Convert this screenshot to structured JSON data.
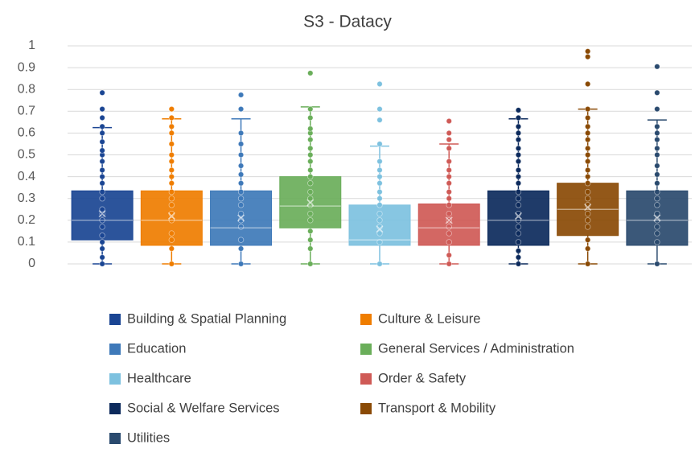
{
  "chart_data": {
    "type": "box",
    "title": "S3 - Datacy",
    "ylim": [
      0,
      1
    ],
    "yticks": [
      0,
      0.1,
      0.2,
      0.3,
      0.4,
      0.5,
      0.6,
      0.7,
      0.8,
      0.9,
      1
    ],
    "grid": true,
    "series": [
      {
        "name": "Building & Spatial Planning",
        "color": "#1a4593",
        "min": 0,
        "q1": 0.11,
        "median": 0.2,
        "q3": 0.335,
        "max": 0.625,
        "mean": 0.23,
        "points": [
          0,
          0.03,
          0.07,
          0.1,
          0.13,
          0.17,
          0.2,
          0.23,
          0.25,
          0.3,
          0.33,
          0.37,
          0.4,
          0.43,
          0.47,
          0.5,
          0.52,
          0.56,
          0.6,
          0.63,
          0.67,
          0.71,
          0.785
        ]
      },
      {
        "name": "Culture & Leisure",
        "color": "#ef7d00",
        "min": 0,
        "q1": 0.085,
        "median": 0.2,
        "q3": 0.335,
        "max": 0.665,
        "mean": 0.22,
        "points": [
          0,
          0.07,
          0.11,
          0.14,
          0.2,
          0.23,
          0.27,
          0.3,
          0.33,
          0.37,
          0.4,
          0.43,
          0.47,
          0.5,
          0.55,
          0.6,
          0.63,
          0.67,
          0.71
        ]
      },
      {
        "name": "Education",
        "color": "#3e79b9",
        "min": 0,
        "q1": 0.085,
        "median": 0.165,
        "q3": 0.335,
        "max": 0.665,
        "mean": 0.21,
        "points": [
          0,
          0.07,
          0.11,
          0.17,
          0.2,
          0.23,
          0.27,
          0.3,
          0.33,
          0.37,
          0.41,
          0.45,
          0.5,
          0.55,
          0.6,
          0.71,
          0.775
        ]
      },
      {
        "name": "General Services / Administration",
        "color": "#6aae5a",
        "min": 0,
        "q1": 0.165,
        "median": 0.265,
        "q3": 0.4,
        "max": 0.72,
        "mean": 0.28,
        "points": [
          0,
          0.07,
          0.11,
          0.15,
          0.2,
          0.23,
          0.27,
          0.3,
          0.33,
          0.37,
          0.4,
          0.43,
          0.47,
          0.5,
          0.53,
          0.57,
          0.6,
          0.62,
          0.67,
          0.71,
          0.875
        ]
      },
      {
        "name": "Healthcare",
        "color": "#7dc1df",
        "min": 0,
        "q1": 0.085,
        "median": 0.11,
        "q3": 0.27,
        "max": 0.54,
        "mean": 0.16,
        "points": [
          0,
          0.1,
          0.14,
          0.17,
          0.2,
          0.23,
          0.27,
          0.3,
          0.33,
          0.37,
          0.4,
          0.43,
          0.47,
          0.55,
          0.66,
          0.71,
          0.825
        ]
      },
      {
        "name": "Order & Safety",
        "color": "#cf5a56",
        "min": 0,
        "q1": 0.085,
        "median": 0.165,
        "q3": 0.275,
        "max": 0.55,
        "mean": 0.2,
        "points": [
          0,
          0.04,
          0.1,
          0.14,
          0.17,
          0.2,
          0.23,
          0.27,
          0.3,
          0.33,
          0.37,
          0.4,
          0.43,
          0.47,
          0.53,
          0.57,
          0.6,
          0.655
        ]
      },
      {
        "name": "Social & Welfare Services",
        "color": "#0c2a5c",
        "min": 0,
        "q1": 0.085,
        "median": 0.2,
        "q3": 0.335,
        "max": 0.665,
        "mean": 0.22,
        "points": [
          0,
          0.03,
          0.06,
          0.1,
          0.14,
          0.17,
          0.2,
          0.23,
          0.27,
          0.3,
          0.33,
          0.37,
          0.4,
          0.43,
          0.47,
          0.5,
          0.53,
          0.57,
          0.6,
          0.63,
          0.67,
          0.705
        ]
      },
      {
        "name": "Transport & Mobility",
        "color": "#8a4a05",
        "min": 0,
        "q1": 0.13,
        "median": 0.25,
        "q3": 0.37,
        "max": 0.71,
        "mean": 0.26,
        "points": [
          0,
          0.07,
          0.11,
          0.17,
          0.2,
          0.23,
          0.27,
          0.3,
          0.33,
          0.37,
          0.4,
          0.43,
          0.47,
          0.5,
          0.53,
          0.57,
          0.6,
          0.63,
          0.67,
          0.71,
          0.825,
          0.95,
          0.975
        ]
      },
      {
        "name": "Utilities",
        "color": "#2a4a6e",
        "min": 0,
        "q1": 0.085,
        "median": 0.2,
        "q3": 0.335,
        "max": 0.66,
        "mean": 0.21,
        "points": [
          0,
          0.1,
          0.14,
          0.17,
          0.2,
          0.23,
          0.27,
          0.3,
          0.33,
          0.37,
          0.41,
          0.45,
          0.5,
          0.53,
          0.57,
          0.6,
          0.63,
          0.71,
          0.785,
          0.905
        ]
      }
    ]
  }
}
